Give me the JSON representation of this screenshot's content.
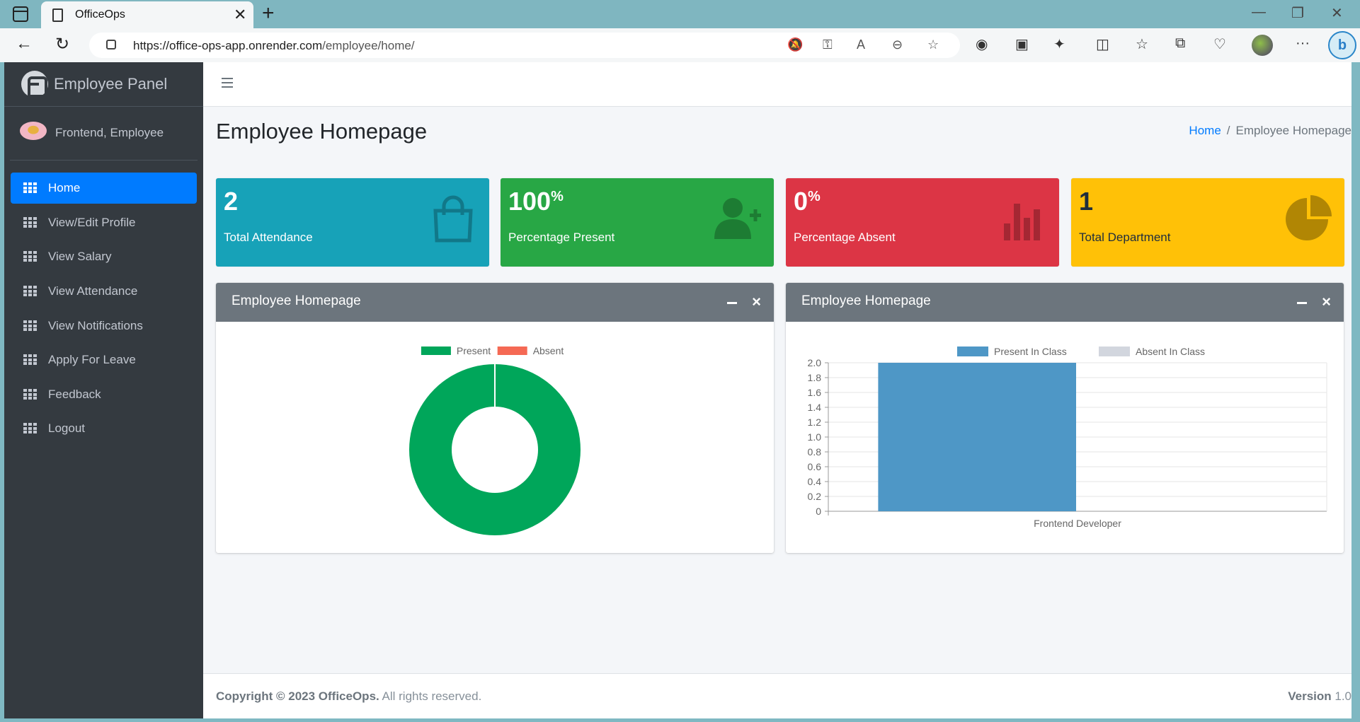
{
  "browser": {
    "tab_title": "OfficeOps",
    "url_host": "https://office-ops-app.onrender.com",
    "url_path": "/employee/home/"
  },
  "sidebar": {
    "brand": "Employee Panel",
    "user_name": "Frontend, Employee",
    "items": [
      {
        "label": "Home",
        "active": true
      },
      {
        "label": "View/Edit Profile"
      },
      {
        "label": "View Salary"
      },
      {
        "label": "View Attendance"
      },
      {
        "label": "View Notifications"
      },
      {
        "label": "Apply For Leave"
      },
      {
        "label": "Feedback"
      },
      {
        "label": "Logout"
      }
    ]
  },
  "header": {
    "page_title": "Employee Homepage",
    "breadcrumb_home": "Home",
    "breadcrumb_separator": "/",
    "breadcrumb_current": "Employee Homepage"
  },
  "info_boxes": [
    {
      "value": "2",
      "suffix": "",
      "label": "Total Attendance",
      "color": "#17a2b8",
      "icon": "shopping-bag-icon"
    },
    {
      "value": "100",
      "suffix": "%",
      "label": "Percentage Present",
      "color": "#28a745",
      "icon": "user-plus-icon"
    },
    {
      "value": "0",
      "suffix": "%",
      "label": "Percentage Absent",
      "color": "#dc3545",
      "icon": "bar-chart-icon"
    },
    {
      "value": "1",
      "suffix": "",
      "label": "Total Department",
      "color": "#ffc107",
      "icon": "pie-chart-icon"
    }
  ],
  "cards": [
    {
      "title": "Employee Homepage"
    },
    {
      "title": "Employee Homepage"
    }
  ],
  "chart_data": [
    {
      "type": "pie",
      "donut": true,
      "categories": [
        "Present",
        "Absent"
      ],
      "values": [
        100,
        0
      ],
      "colors": [
        "#00a65a",
        "#f56954"
      ],
      "legend": "top"
    },
    {
      "type": "bar",
      "categories": [
        "Frontend Developer"
      ],
      "series": [
        {
          "name": "Present In Class",
          "values": [
            2
          ],
          "color": "#4e97c6"
        },
        {
          "name": "Absent In Class",
          "values": [
            0
          ],
          "color": "#d2d6de"
        }
      ],
      "ylim": [
        0,
        2.0
      ],
      "yticks": [
        "2.0",
        "1.8",
        "1.6",
        "1.4",
        "1.2",
        "1.0",
        "0.8",
        "0.6",
        "0.4",
        "0.2",
        "0"
      ],
      "grid": true,
      "legend": "top"
    }
  ],
  "footer": {
    "copyright_bold": "Copyright © 2023 OfficeOps.",
    "copyright_rest": " All rights reserved.",
    "version_label": "Version",
    "version_value": " 1.0"
  }
}
